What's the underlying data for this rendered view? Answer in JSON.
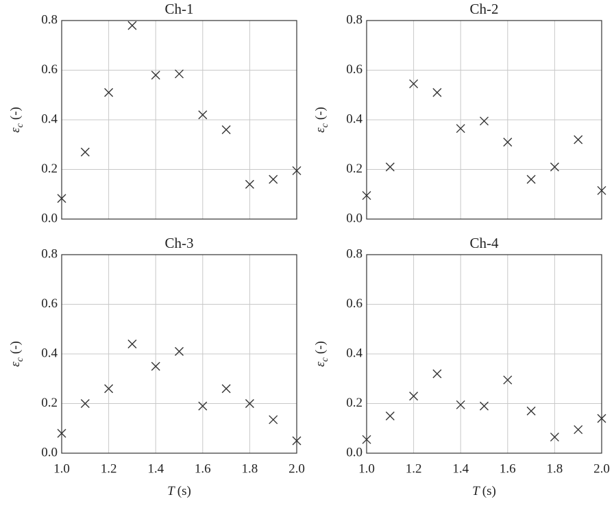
{
  "chart_data": [
    {
      "type": "scatter",
      "title": "Ch-1",
      "marker": "x",
      "color": "#333333",
      "grid": true,
      "ylabel_symbol": "ε",
      "ylabel_subscript": "c",
      "ylabel_unit": "(-)",
      "x": [
        1.0,
        1.1,
        1.2,
        1.3,
        1.4,
        1.5,
        1.6,
        1.7,
        1.8,
        1.9,
        2.0
      ],
      "values": [
        0.083,
        0.27,
        0.51,
        0.78,
        0.58,
        0.585,
        0.42,
        0.36,
        0.14,
        0.16,
        0.195
      ],
      "xlim": [
        1.0,
        2.0
      ],
      "xticks": [
        1.0,
        1.2,
        1.4,
        1.6,
        1.8,
        2.0
      ],
      "xticklabels": false,
      "ylim": [
        0,
        0.8
      ],
      "yticks": [
        {
          "value": 0,
          "label": "0.0"
        },
        0.2,
        0.4,
        0.6,
        0.8
      ]
    },
    {
      "type": "scatter",
      "title": "Ch-2",
      "marker": "x",
      "color": "#333333",
      "grid": true,
      "ylabel_symbol": "ε",
      "ylabel_subscript": "c",
      "ylabel_unit": "(-)",
      "x": [
        1.0,
        1.1,
        1.2,
        1.3,
        1.4,
        1.5,
        1.6,
        1.7,
        1.8,
        1.9,
        2.0
      ],
      "values": [
        0.095,
        0.21,
        0.545,
        0.51,
        0.365,
        0.395,
        0.31,
        0.16,
        0.21,
        0.32,
        0.115
      ],
      "xlim": [
        1.0,
        2.0
      ],
      "xticks": [
        1.0,
        1.2,
        1.4,
        1.6,
        1.8,
        2.0
      ],
      "xticklabels": false,
      "ylim": [
        0,
        0.8
      ],
      "yticks": [
        {
          "value": 0,
          "label": "0.0"
        },
        0.2,
        0.4,
        0.6,
        0.8
      ]
    },
    {
      "type": "scatter",
      "title": "Ch-3",
      "marker": "x",
      "color": "#333333",
      "grid": true,
      "ylabel_symbol": "ε",
      "ylabel_subscript": "c",
      "ylabel_unit": "(-)",
      "xlabel_symbol": "T",
      "xlabel_unit": "(s)",
      "x": [
        1.0,
        1.1,
        1.2,
        1.3,
        1.4,
        1.5,
        1.6,
        1.7,
        1.8,
        1.9,
        2.0
      ],
      "values": [
        0.08,
        0.2,
        0.26,
        0.44,
        0.35,
        0.41,
        0.19,
        0.26,
        0.2,
        0.135,
        0.05
      ],
      "xlim": [
        1.0,
        2.0
      ],
      "xticks": [
        {
          "value": 1,
          "label": "1.0"
        },
        1.2,
        1.4,
        1.6,
        1.8,
        {
          "value": 2,
          "label": "2.0"
        }
      ],
      "xticklabels": true,
      "ylim": [
        0,
        0.8
      ],
      "yticks": [
        {
          "value": 0,
          "label": "0.0"
        },
        0.2,
        0.4,
        0.6,
        0.8
      ]
    },
    {
      "type": "scatter",
      "title": "Ch-4",
      "marker": "x",
      "color": "#333333",
      "grid": true,
      "ylabel_symbol": "ε",
      "ylabel_subscript": "c",
      "ylabel_unit": "(-)",
      "xlabel_symbol": "T",
      "xlabel_unit": "(s)",
      "x": [
        1.0,
        1.1,
        1.2,
        1.3,
        1.4,
        1.5,
        1.6,
        1.7,
        1.8,
        1.9,
        2.0
      ],
      "values": [
        0.055,
        0.15,
        0.23,
        0.32,
        0.195,
        0.19,
        0.295,
        0.17,
        0.065,
        0.095,
        0.14
      ],
      "xlim": [
        1.0,
        2.0
      ],
      "xticks": [
        {
          "value": 1,
          "label": "1.0"
        },
        1.2,
        1.4,
        1.6,
        1.8,
        {
          "value": 2,
          "label": "2.0"
        }
      ],
      "xticklabels": true,
      "ylim": [
        0,
        0.8
      ],
      "yticks": [
        {
          "value": 0,
          "label": "0.0"
        },
        0.2,
        0.4,
        0.6,
        0.8
      ]
    }
  ]
}
